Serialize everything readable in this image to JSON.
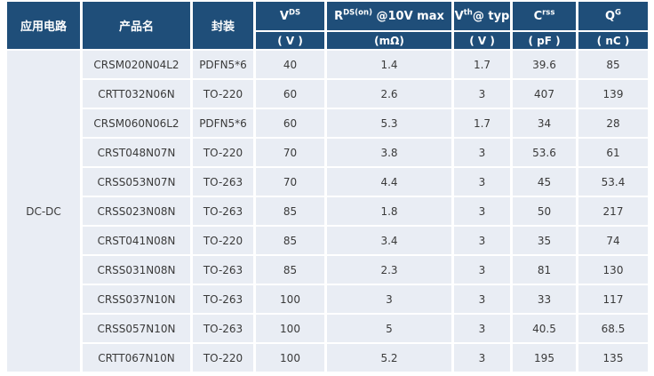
{
  "colors": {
    "header_bg": "#1F4E79",
    "header_text": "#FFFFFF",
    "row_bg": "#E9EDF4",
    "cell_text": "#3A3A3A",
    "grid_border": "#FFFFFF",
    "page_bg": "#FFFFFF"
  },
  "table": {
    "headers": {
      "application": "应用电路",
      "product": "产品名",
      "package": "封装",
      "vds": {
        "base": "V",
        "sup": "DS",
        "rest": "",
        "unit": "( V )"
      },
      "rds": {
        "base": "R",
        "sup": "DS(on)",
        "rest": " @10V max",
        "unit": "(mΩ)"
      },
      "vth": {
        "base": "V",
        "sup": "th",
        "rest": "@ typ",
        "unit": "( V )"
      },
      "crss": {
        "base": "C",
        "sup": "rss",
        "rest": "",
        "unit": "( pF )"
      },
      "qg": {
        "base": "Q",
        "sup": "G",
        "rest": "",
        "unit": "( nC )"
      }
    },
    "group_label": "DC-DC",
    "rows": [
      {
        "product": "CRSM020N04L2",
        "package": "PDFN5*6",
        "vds": "40",
        "rds": "1.4",
        "vth": "1.7",
        "crss": "39.6",
        "qg": "85"
      },
      {
        "product": "CRTT032N06N",
        "package": "TO-220",
        "vds": "60",
        "rds": "2.6",
        "vth": "3",
        "crss": "407",
        "qg": "139"
      },
      {
        "product": "CRSM060N06L2",
        "package": "PDFN5*6",
        "vds": "60",
        "rds": "5.3",
        "vth": "1.7",
        "crss": "34",
        "qg": "28"
      },
      {
        "product": "CRST048N07N",
        "package": "TO-220",
        "vds": "70",
        "rds": "3.8",
        "vth": "3",
        "crss": "53.6",
        "qg": "61"
      },
      {
        "product": "CRSS053N07N",
        "package": "TO-263",
        "vds": "70",
        "rds": "4.4",
        "vth": "3",
        "crss": "45",
        "qg": "53.4"
      },
      {
        "product": "CRSS023N08N",
        "package": "TO-263",
        "vds": "85",
        "rds": "1.8",
        "vth": "3",
        "crss": "50",
        "qg": "217"
      },
      {
        "product": "CRST041N08N",
        "package": "TO-220",
        "vds": "85",
        "rds": "3.4",
        "vth": "3",
        "crss": "35",
        "qg": "74"
      },
      {
        "product": "CRSS031N08N",
        "package": "TO-263",
        "vds": "85",
        "rds": "2.3",
        "vth": "3",
        "crss": "81",
        "qg": "130"
      },
      {
        "product": "CRSS037N10N",
        "package": "TO-263",
        "vds": "100",
        "rds": "3",
        "vth": "3",
        "crss": "33",
        "qg": "117"
      },
      {
        "product": "CRSS057N10N",
        "package": "TO-263",
        "vds": "100",
        "rds": "5",
        "vth": "3",
        "crss": "40.5",
        "qg": "68.5"
      },
      {
        "product": "CRTT067N10N",
        "package": "TO-220",
        "vds": "100",
        "rds": "5.2",
        "vth": "3",
        "crss": "195",
        "qg": "135"
      }
    ]
  },
  "chart_data": {
    "type": "table",
    "title": "",
    "columns": [
      "应用电路",
      "产品名",
      "封装",
      "VDS (V)",
      "RDS(on) @10V max (mΩ)",
      "Vth@ typ (V)",
      "Crss (pF)",
      "QG (nC)"
    ],
    "rows": [
      [
        "DC-DC",
        "CRSM020N04L2",
        "PDFN5*6",
        40,
        1.4,
        1.7,
        39.6,
        85
      ],
      [
        "DC-DC",
        "CRTT032N06N",
        "TO-220",
        60,
        2.6,
        3,
        407,
        139
      ],
      [
        "DC-DC",
        "CRSM060N06L2",
        "PDFN5*6",
        60,
        5.3,
        1.7,
        34,
        28
      ],
      [
        "DC-DC",
        "CRST048N07N",
        "TO-220",
        70,
        3.8,
        3,
        53.6,
        61
      ],
      [
        "DC-DC",
        "CRSS053N07N",
        "TO-263",
        70,
        4.4,
        3,
        45,
        53.4
      ],
      [
        "DC-DC",
        "CRSS023N08N",
        "TO-263",
        85,
        1.8,
        3,
        50,
        217
      ],
      [
        "DC-DC",
        "CRST041N08N",
        "TO-220",
        85,
        3.4,
        3,
        35,
        74
      ],
      [
        "DC-DC",
        "CRSS031N08N",
        "TO-263",
        85,
        2.3,
        3,
        81,
        130
      ],
      [
        "DC-DC",
        "CRSS037N10N",
        "TO-263",
        100,
        3,
        3,
        33,
        117
      ],
      [
        "DC-DC",
        "CRSS057N10N",
        "TO-263",
        100,
        5,
        3,
        40.5,
        68.5
      ],
      [
        "DC-DC",
        "CRTT067N10N",
        "TO-220",
        100,
        5.2,
        3,
        195,
        135
      ]
    ]
  }
}
